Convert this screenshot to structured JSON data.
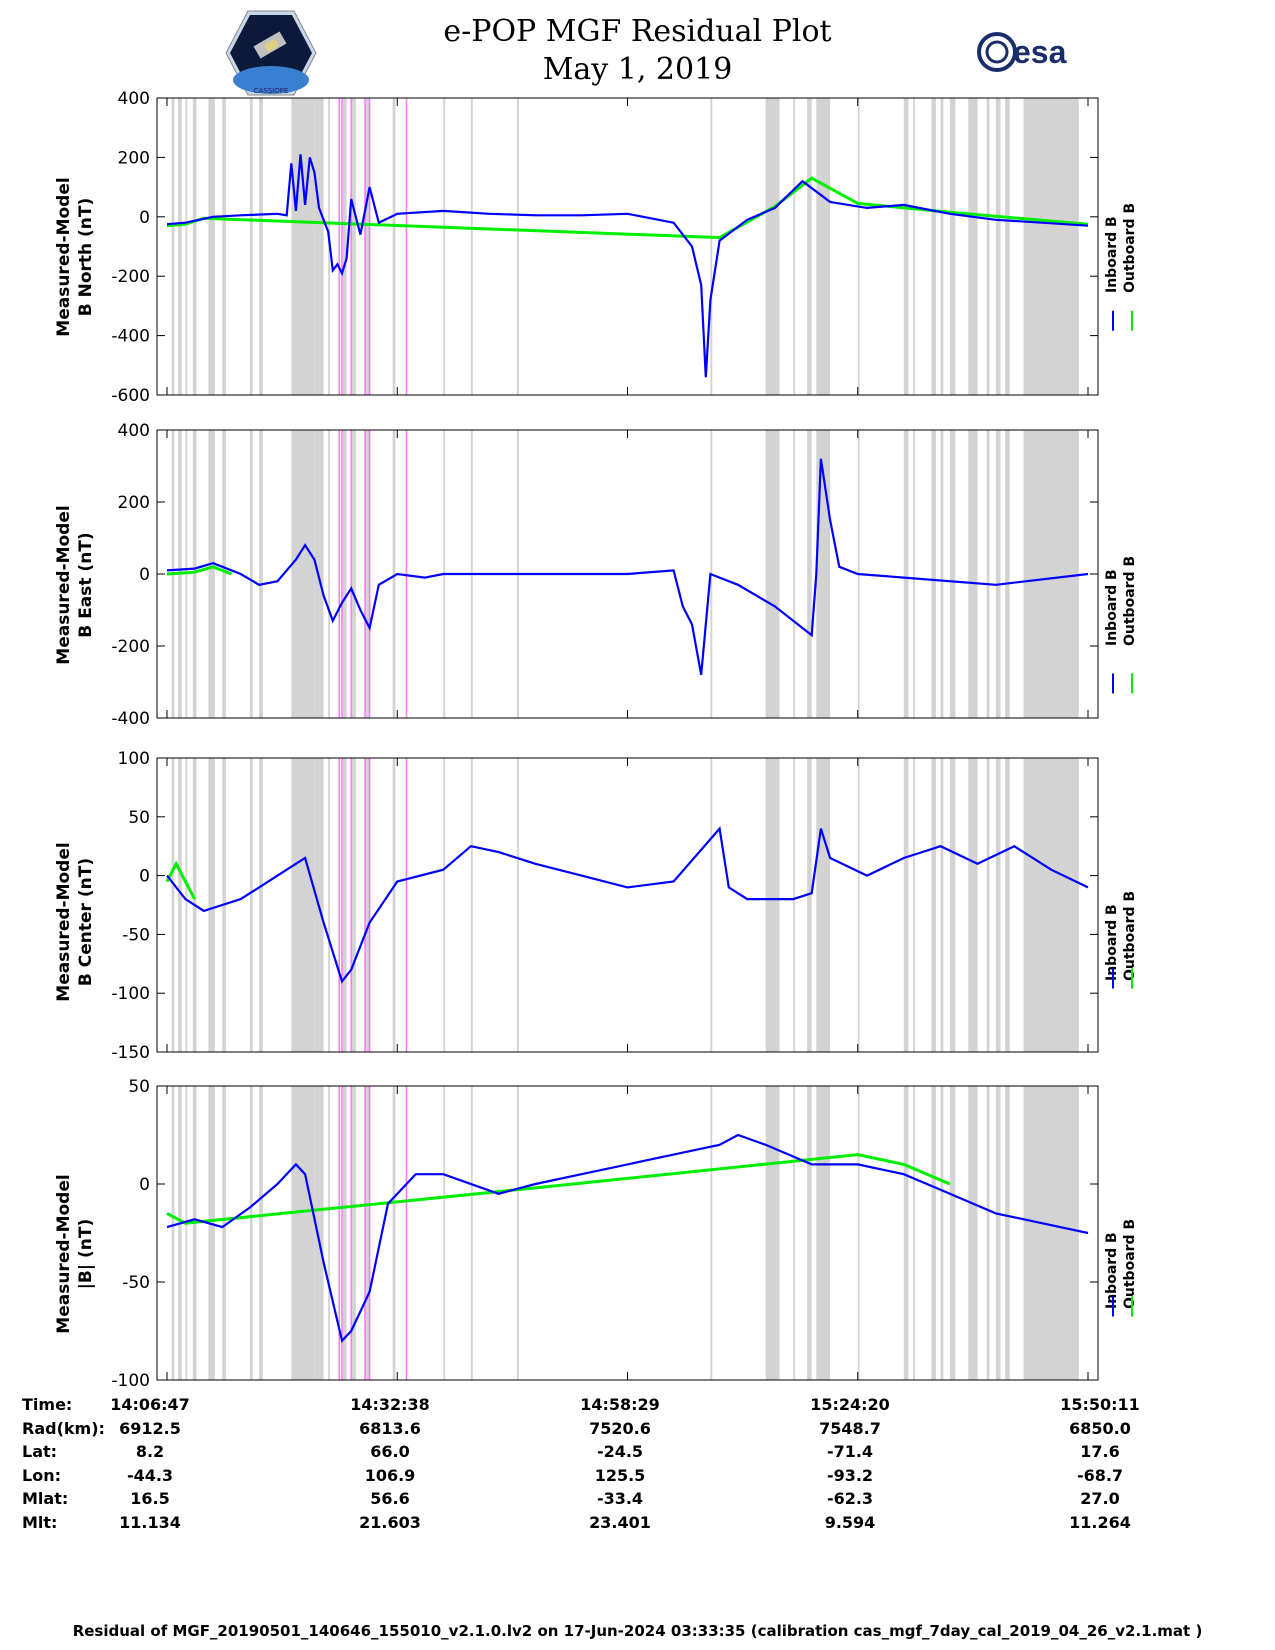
{
  "header": {
    "title": "e-POP MGF Residual Plot",
    "date": "May 1, 2019",
    "left_logo": "cassiope-mission-logo",
    "left_logo_text": "CASSIOPE",
    "right_logo_text": "esa"
  },
  "colors": {
    "inboard": "#0000ff",
    "outboard": "#00ee00",
    "gray_band": "#d3d3d3",
    "magenta_line": "#ff77ff"
  },
  "chart_data": [
    {
      "type": "line",
      "panel": "north",
      "ylabel": [
        "Measured-Model",
        "B North (nT)"
      ],
      "xlabel": "",
      "ylim": [
        -600,
        400
      ],
      "yticks": [
        400,
        200,
        0,
        -200,
        -400,
        -600
      ],
      "legend": [
        "Inboard B",
        "Outboard B"
      ],
      "series": [
        {
          "name": "Inboard B",
          "color": "#0000ff",
          "points": [
            [
              0,
              -25
            ],
            [
              0.02,
              -20
            ],
            [
              0.05,
              0
            ],
            [
              0.08,
              5
            ],
            [
              0.12,
              10
            ],
            [
              0.13,
              5
            ],
            [
              0.135,
              180
            ],
            [
              0.14,
              20
            ],
            [
              0.145,
              210
            ],
            [
              0.15,
              40
            ],
            [
              0.155,
              200
            ],
            [
              0.16,
              150
            ],
            [
              0.165,
              30
            ],
            [
              0.175,
              -50
            ],
            [
              0.18,
              -180
            ],
            [
              0.185,
              -160
            ],
            [
              0.19,
              -190
            ],
            [
              0.195,
              -140
            ],
            [
              0.2,
              60
            ],
            [
              0.21,
              -60
            ],
            [
              0.22,
              100
            ],
            [
              0.23,
              -20
            ],
            [
              0.25,
              10
            ],
            [
              0.3,
              20
            ],
            [
              0.35,
              10
            ],
            [
              0.4,
              5
            ],
            [
              0.45,
              5
            ],
            [
              0.5,
              10
            ],
            [
              0.55,
              -20
            ],
            [
              0.57,
              -100
            ],
            [
              0.58,
              -230
            ],
            [
              0.585,
              -540
            ],
            [
              0.59,
              -280
            ],
            [
              0.6,
              -80
            ],
            [
              0.63,
              -10
            ],
            [
              0.66,
              30
            ],
            [
              0.69,
              120
            ],
            [
              0.72,
              50
            ],
            [
              0.76,
              30
            ],
            [
              0.8,
              40
            ],
            [
              0.85,
              10
            ],
            [
              0.9,
              -10
            ],
            [
              0.95,
              -20
            ],
            [
              1.0,
              -30
            ]
          ]
        },
        {
          "name": "Outboard B",
          "color": "#00ee00",
          "points": [
            [
              0,
              -30
            ],
            [
              0.02,
              -25
            ],
            [
              0.04,
              -5
            ],
            [
              0.6,
              -70
            ],
            [
              0.66,
              35
            ],
            [
              0.7,
              130
            ],
            [
              0.75,
              45
            ],
            [
              0.85,
              15
            ],
            [
              1.0,
              -25
            ]
          ]
        }
      ]
    },
    {
      "type": "line",
      "panel": "east",
      "ylabel": [
        "Measured-Model",
        "B East (nT)"
      ],
      "xlabel": "",
      "ylim": [
        -400,
        400
      ],
      "yticks": [
        400,
        200,
        0,
        -200,
        -400
      ],
      "legend": [
        "Inboard B",
        "Outboard B"
      ],
      "series": [
        {
          "name": "Inboard B",
          "color": "#0000ff",
          "points": [
            [
              0,
              10
            ],
            [
              0.03,
              15
            ],
            [
              0.05,
              30
            ],
            [
              0.08,
              0
            ],
            [
              0.1,
              -30
            ],
            [
              0.12,
              -20
            ],
            [
              0.14,
              40
            ],
            [
              0.15,
              80
            ],
            [
              0.16,
              40
            ],
            [
              0.17,
              -60
            ],
            [
              0.18,
              -130
            ],
            [
              0.19,
              -80
            ],
            [
              0.2,
              -40
            ],
            [
              0.21,
              -100
            ],
            [
              0.22,
              -150
            ],
            [
              0.23,
              -30
            ],
            [
              0.25,
              0
            ],
            [
              0.28,
              -10
            ],
            [
              0.3,
              0
            ],
            [
              0.4,
              0
            ],
            [
              0.5,
              0
            ],
            [
              0.55,
              10
            ],
            [
              0.56,
              -90
            ],
            [
              0.57,
              -140
            ],
            [
              0.58,
              -280
            ],
            [
              0.59,
              0
            ],
            [
              0.62,
              -30
            ],
            [
              0.64,
              -60
            ],
            [
              0.66,
              -90
            ],
            [
              0.7,
              -170
            ],
            [
              0.705,
              0
            ],
            [
              0.71,
              320
            ],
            [
              0.72,
              150
            ],
            [
              0.73,
              20
            ],
            [
              0.75,
              0
            ],
            [
              0.8,
              -10
            ],
            [
              0.9,
              -30
            ],
            [
              1.0,
              0
            ]
          ]
        },
        {
          "name": "Outboard B",
          "color": "#00ee00",
          "points": [
            [
              0,
              0
            ],
            [
              0.03,
              5
            ],
            [
              0.05,
              20
            ],
            [
              0.07,
              0
            ]
          ]
        }
      ]
    },
    {
      "type": "line",
      "panel": "center",
      "ylabel": [
        "Measured-Model",
        "B Center (nT)"
      ],
      "xlabel": "",
      "ylim": [
        -150,
        100
      ],
      "yticks": [
        100,
        50,
        0,
        -50,
        -100,
        -150
      ],
      "legend": [
        "Inboard B",
        "Outboard B"
      ],
      "series": [
        {
          "name": "Inboard B",
          "color": "#0000ff",
          "points": [
            [
              0,
              0
            ],
            [
              0.02,
              -20
            ],
            [
              0.04,
              -30
            ],
            [
              0.06,
              -25
            ],
            [
              0.08,
              -20
            ],
            [
              0.1,
              -10
            ],
            [
              0.13,
              5
            ],
            [
              0.15,
              15
            ],
            [
              0.17,
              -40
            ],
            [
              0.19,
              -90
            ],
            [
              0.2,
              -80
            ],
            [
              0.22,
              -40
            ],
            [
              0.25,
              -5
            ],
            [
              0.3,
              5
            ],
            [
              0.33,
              25
            ],
            [
              0.36,
              20
            ],
            [
              0.4,
              10
            ],
            [
              0.45,
              0
            ],
            [
              0.5,
              -10
            ],
            [
              0.55,
              -5
            ],
            [
              0.6,
              40
            ],
            [
              0.61,
              -10
            ],
            [
              0.63,
              -20
            ],
            [
              0.68,
              -20
            ],
            [
              0.7,
              -15
            ],
            [
              0.71,
              40
            ],
            [
              0.72,
              15
            ],
            [
              0.76,
              0
            ],
            [
              0.8,
              15
            ],
            [
              0.84,
              25
            ],
            [
              0.88,
              10
            ],
            [
              0.92,
              25
            ],
            [
              0.96,
              5
            ],
            [
              1.0,
              -10
            ]
          ]
        },
        {
          "name": "Outboard B",
          "color": "#00ee00",
          "points": [
            [
              0,
              -5
            ],
            [
              0.01,
              10
            ],
            [
              0.02,
              -5
            ],
            [
              0.03,
              -20
            ]
          ]
        }
      ]
    },
    {
      "type": "line",
      "panel": "total",
      "ylabel": [
        "Measured-Model",
        "|B| (nT)"
      ],
      "xlabel": "",
      "ylim": [
        -100,
        50
      ],
      "yticks": [
        50,
        0,
        -50,
        -100
      ],
      "legend": [
        "Inboard B",
        "Outboard B"
      ],
      "series": [
        {
          "name": "Inboard B",
          "color": "#0000ff",
          "points": [
            [
              0,
              -22
            ],
            [
              0.03,
              -18
            ],
            [
              0.06,
              -22
            ],
            [
              0.09,
              -12
            ],
            [
              0.12,
              0
            ],
            [
              0.14,
              10
            ],
            [
              0.15,
              5
            ],
            [
              0.17,
              -40
            ],
            [
              0.19,
              -80
            ],
            [
              0.2,
              -75
            ],
            [
              0.22,
              -55
            ],
            [
              0.24,
              -10
            ],
            [
              0.27,
              5
            ],
            [
              0.3,
              5
            ],
            [
              0.36,
              -5
            ],
            [
              0.4,
              0
            ],
            [
              0.45,
              5
            ],
            [
              0.5,
              10
            ],
            [
              0.55,
              15
            ],
            [
              0.6,
              20
            ],
            [
              0.62,
              25
            ],
            [
              0.65,
              20
            ],
            [
              0.7,
              10
            ],
            [
              0.75,
              10
            ],
            [
              0.8,
              5
            ],
            [
              0.85,
              -5
            ],
            [
              0.9,
              -15
            ],
            [
              0.95,
              -20
            ],
            [
              1.0,
              -25
            ]
          ]
        },
        {
          "name": "Outboard B",
          "color": "#00ee00",
          "points": [
            [
              0,
              -15
            ],
            [
              0.02,
              -20
            ],
            [
              0.4,
              -2
            ],
            [
              0.75,
              15
            ],
            [
              0.8,
              10
            ],
            [
              0.85,
              0
            ]
          ]
        }
      ]
    }
  ],
  "xaxis": {
    "tick_labels": [
      "14:06:47",
      "14:32:38",
      "14:58:29",
      "15:24:20",
      "15:50:11"
    ]
  },
  "ephemeris": {
    "rows": [
      {
        "label": "Time:",
        "values": [
          "14:06:47",
          "14:32:38",
          "14:58:29",
          "15:24:20",
          "15:50:11"
        ]
      },
      {
        "label": "Rad(km):",
        "values": [
          "6912.5",
          "6813.6",
          "7520.6",
          "7548.7",
          "6850.0"
        ]
      },
      {
        "label": "Lat:",
        "values": [
          "8.2",
          "66.0",
          "-24.5",
          "-71.4",
          "17.6"
        ]
      },
      {
        "label": "Lon:",
        "values": [
          "-44.3",
          "106.9",
          "125.5",
          "-93.2",
          "-68.7"
        ]
      },
      {
        "label": "Mlat:",
        "values": [
          "16.5",
          "56.6",
          "-33.4",
          "-62.3",
          "27.0"
        ]
      },
      {
        "label": "Mlt:",
        "values": [
          "11.134",
          "21.603",
          "23.401",
          "9.594",
          "11.264"
        ]
      }
    ]
  },
  "footer": {
    "text": "Residual of MGF_20190501_140646_155010_v2.1.0.lv2 on 17-Jun-2024 03:33:35 (calibration cas_mgf_7day_cal_2019_04_26_v2.1.mat )"
  }
}
